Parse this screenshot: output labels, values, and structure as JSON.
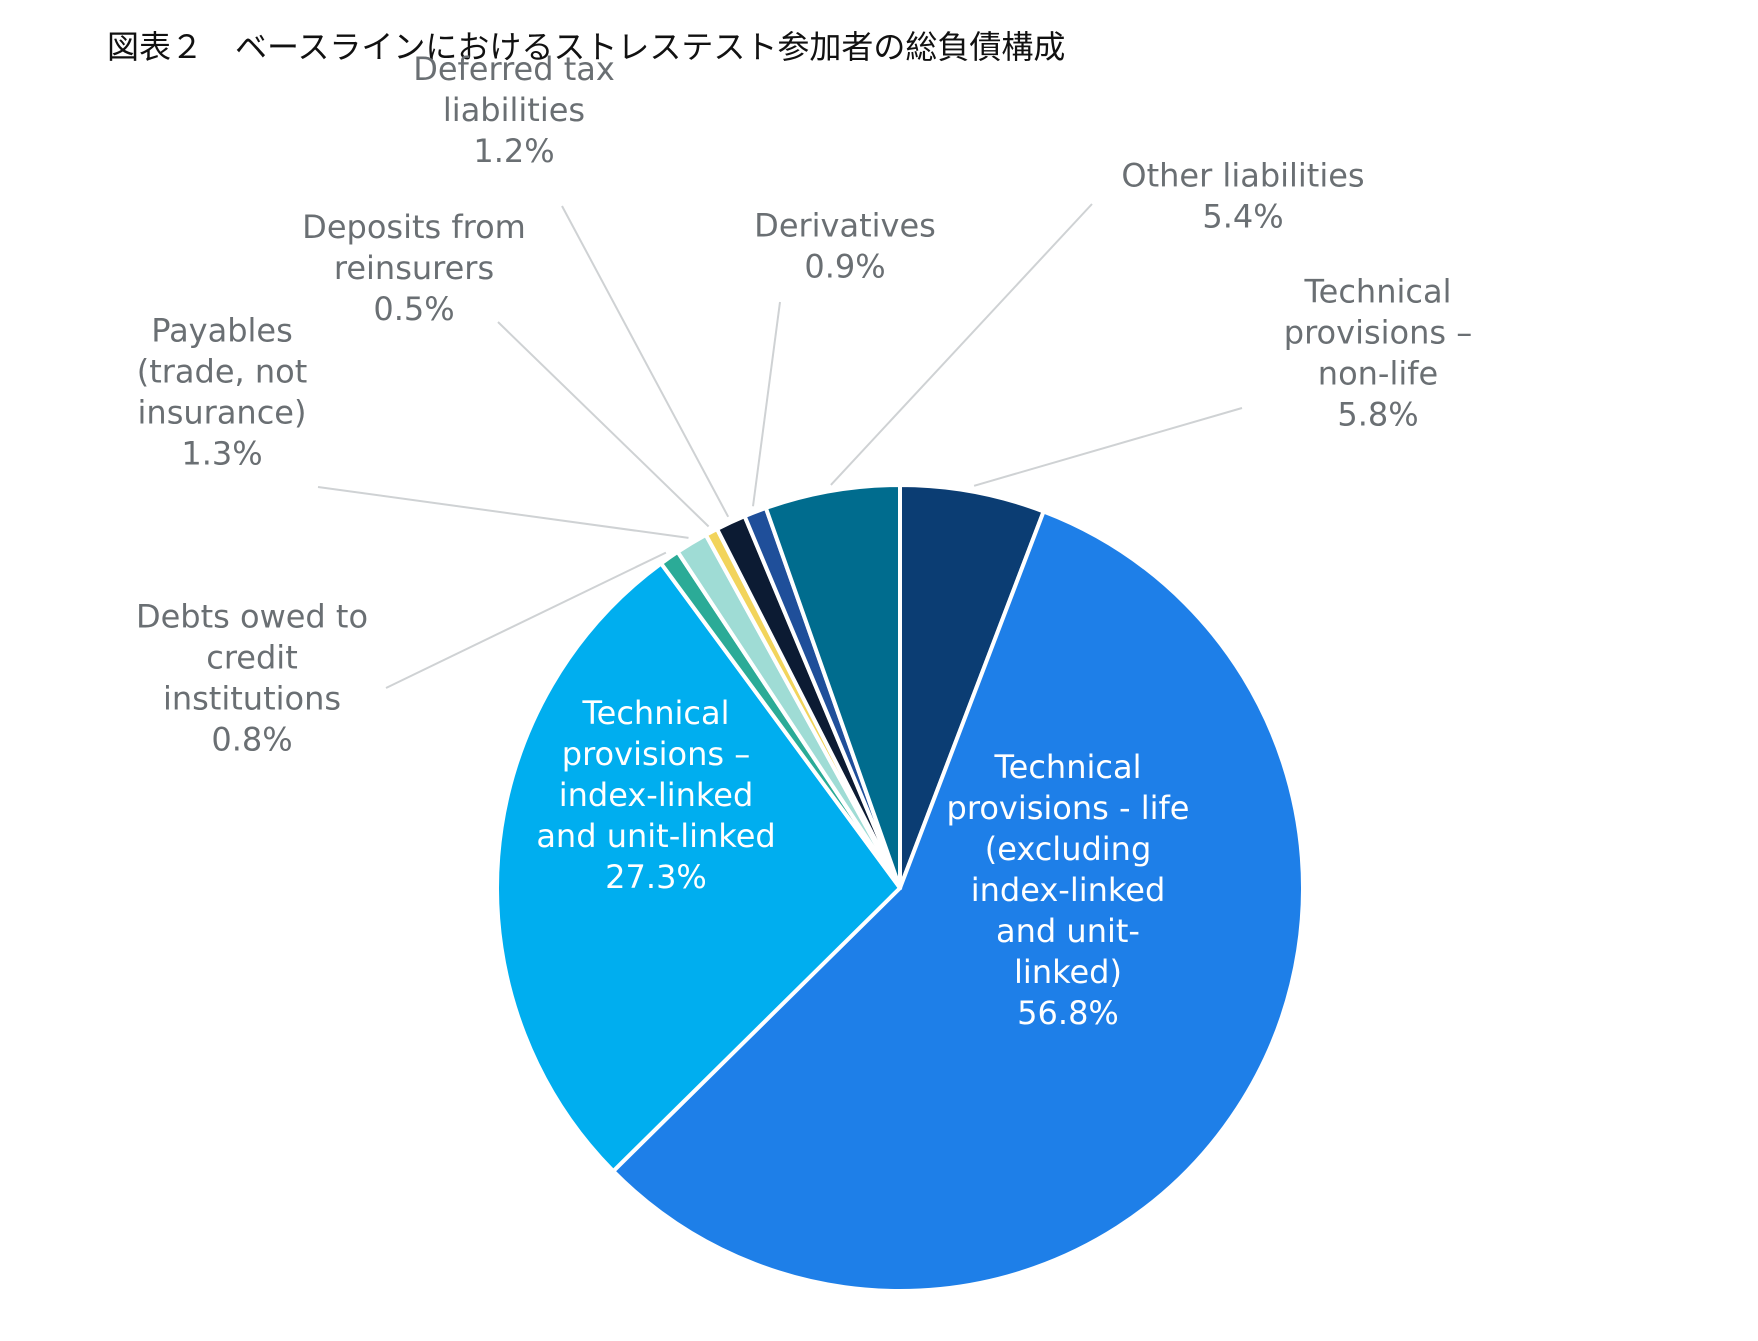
{
  "chart_data": {
    "type": "pie",
    "title": "図表２　ベースラインにおけるストレステスト参加者の総負債構成",
    "unit": "%",
    "slices": [
      {
        "key": "tp_nonlife",
        "lines": [
          "Technical",
          "provisions –",
          "non-life"
        ],
        "value": 5.8,
        "value_label": "5.8%",
        "color": "#0b3d73"
      },
      {
        "key": "tp_life",
        "lines": [
          "Technical",
          "provisions - life",
          "(excluding",
          "index-linked",
          "and unit-",
          "linked)"
        ],
        "value": 56.8,
        "value_label": "56.8%",
        "color": "#1e7fe8"
      },
      {
        "key": "tp_index",
        "lines": [
          "Technical",
          "provisions –",
          "index-linked",
          "and unit-linked"
        ],
        "value": 27.3,
        "value_label": "27.3%",
        "color": "#00aeef"
      },
      {
        "key": "debts_credit",
        "lines": [
          "Debts owed to",
          "credit",
          "institutions"
        ],
        "value": 0.8,
        "value_label": "0.8%",
        "color": "#2bab97"
      },
      {
        "key": "payables",
        "lines": [
          "Payables",
          "(trade, not",
          "insurance)"
        ],
        "value": 1.3,
        "value_label": "1.3%",
        "color": "#9fdcd5"
      },
      {
        "key": "deposits_reins",
        "lines": [
          "Deposits from",
          "reinsurers"
        ],
        "value": 0.5,
        "value_label": "0.5%",
        "color": "#f2d45c"
      },
      {
        "key": "deferred_tax",
        "lines": [
          "Deferred tax",
          "liabilities"
        ],
        "value": 1.2,
        "value_label": "1.2%",
        "color": "#0c1b33"
      },
      {
        "key": "derivatives",
        "lines": [
          "Derivatives"
        ],
        "value": 0.9,
        "value_label": "0.9%",
        "color": "#1f4f9a"
      },
      {
        "key": "other_liab",
        "lines": [
          "Other liabilities"
        ],
        "value": 5.4,
        "value_label": "5.4%",
        "color": "#006c8e"
      }
    ]
  }
}
